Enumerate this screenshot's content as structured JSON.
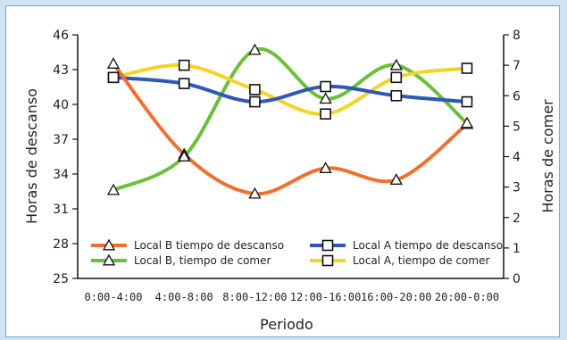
{
  "chart_data": {
    "type": "line",
    "categories": [
      "0:00-4:00",
      "4:00-8:00",
      "8:00-12:00",
      "12:00-16:00",
      "16:00-20:00",
      "20:00-0:00"
    ],
    "xlabel": "Periodo",
    "ylabel_left": "Horas de descanso",
    "ylabel_right": "Horas de comer",
    "ylim_left": [
      25,
      46
    ],
    "yticks_left": [
      25,
      28,
      31,
      34,
      37,
      40,
      43,
      46
    ],
    "ylim_right": [
      0,
      8
    ],
    "yticks_right": [
      0,
      1,
      2,
      3,
      4,
      5,
      6,
      7,
      8
    ],
    "grid": false,
    "legend_position": "bottom-inside",
    "series": [
      {
        "name": "Local B tiempo de descanso",
        "axis": "left",
        "marker": "triangle",
        "color": "#f07030",
        "values": [
          43.5,
          35.7,
          32.3,
          34.5,
          33.5,
          38.3
        ]
      },
      {
        "name": "Local B, tiempo de comer",
        "axis": "right",
        "marker": "triangle",
        "color": "#6cbf3a",
        "values": [
          2.9,
          4.0,
          7.5,
          5.9,
          7.0,
          5.1
        ]
      },
      {
        "name": "Local A tiempo de descanso",
        "axis": "right",
        "marker": "square",
        "color": "#2e57b7",
        "values": [
          6.6,
          6.4,
          5.8,
          6.3,
          6.0,
          5.8
        ]
      },
      {
        "name": "Local A, tiempo de comer",
        "axis": "right",
        "marker": "square",
        "color": "#f4d428",
        "values": [
          6.6,
          7.0,
          6.2,
          5.4,
          6.6,
          6.9
        ]
      }
    ]
  }
}
